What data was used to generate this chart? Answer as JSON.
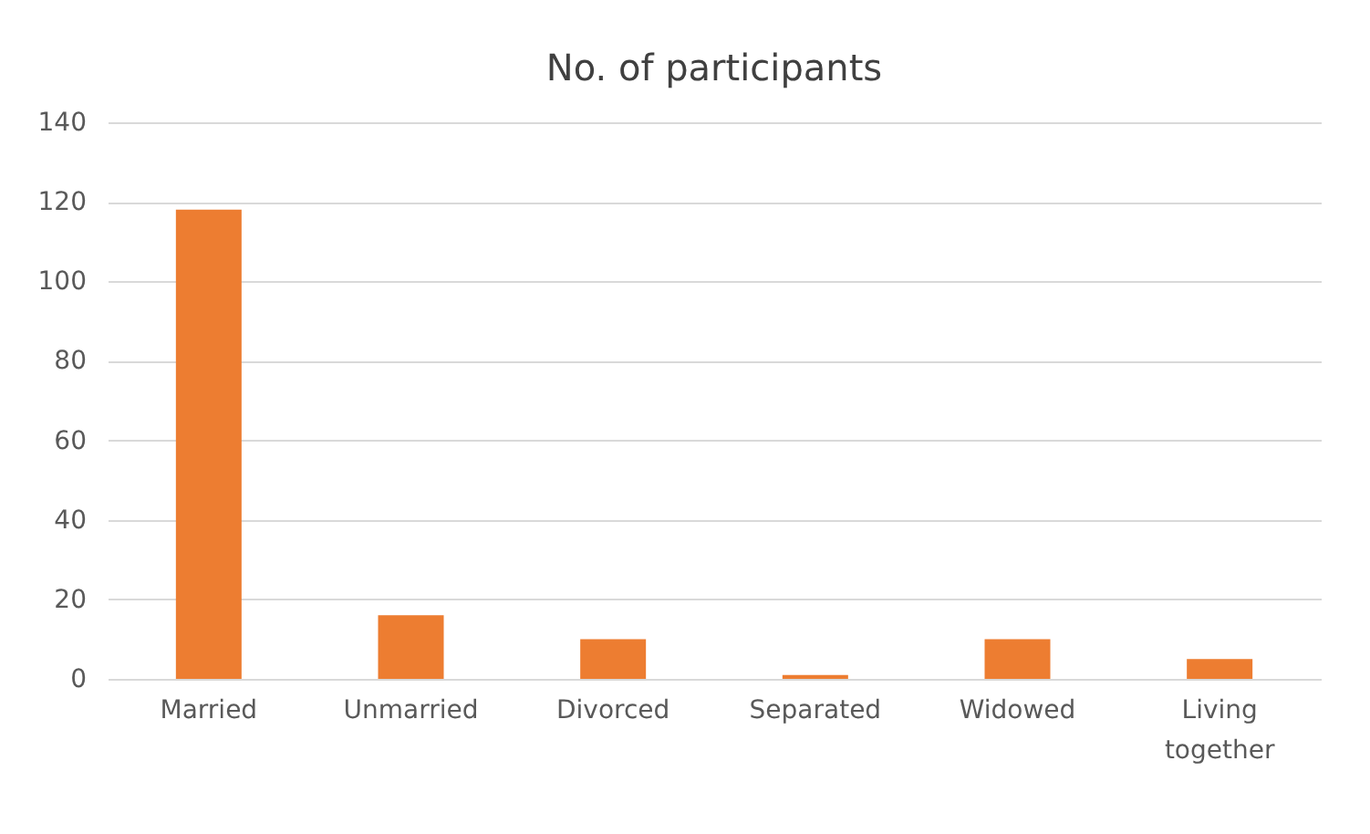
{
  "chart_data": {
    "type": "bar",
    "title": "No. of participants",
    "categories": [
      "Married",
      "Unmarried",
      "Divorced",
      "Separated",
      "Widowed",
      "Living together"
    ],
    "values": [
      118,
      16,
      10,
      1,
      10,
      5
    ],
    "color": "#ed7d31",
    "ylim": [
      0,
      140
    ],
    "yticks": [
      0,
      20,
      40,
      60,
      80,
      100,
      120,
      140
    ],
    "grid": "y"
  }
}
